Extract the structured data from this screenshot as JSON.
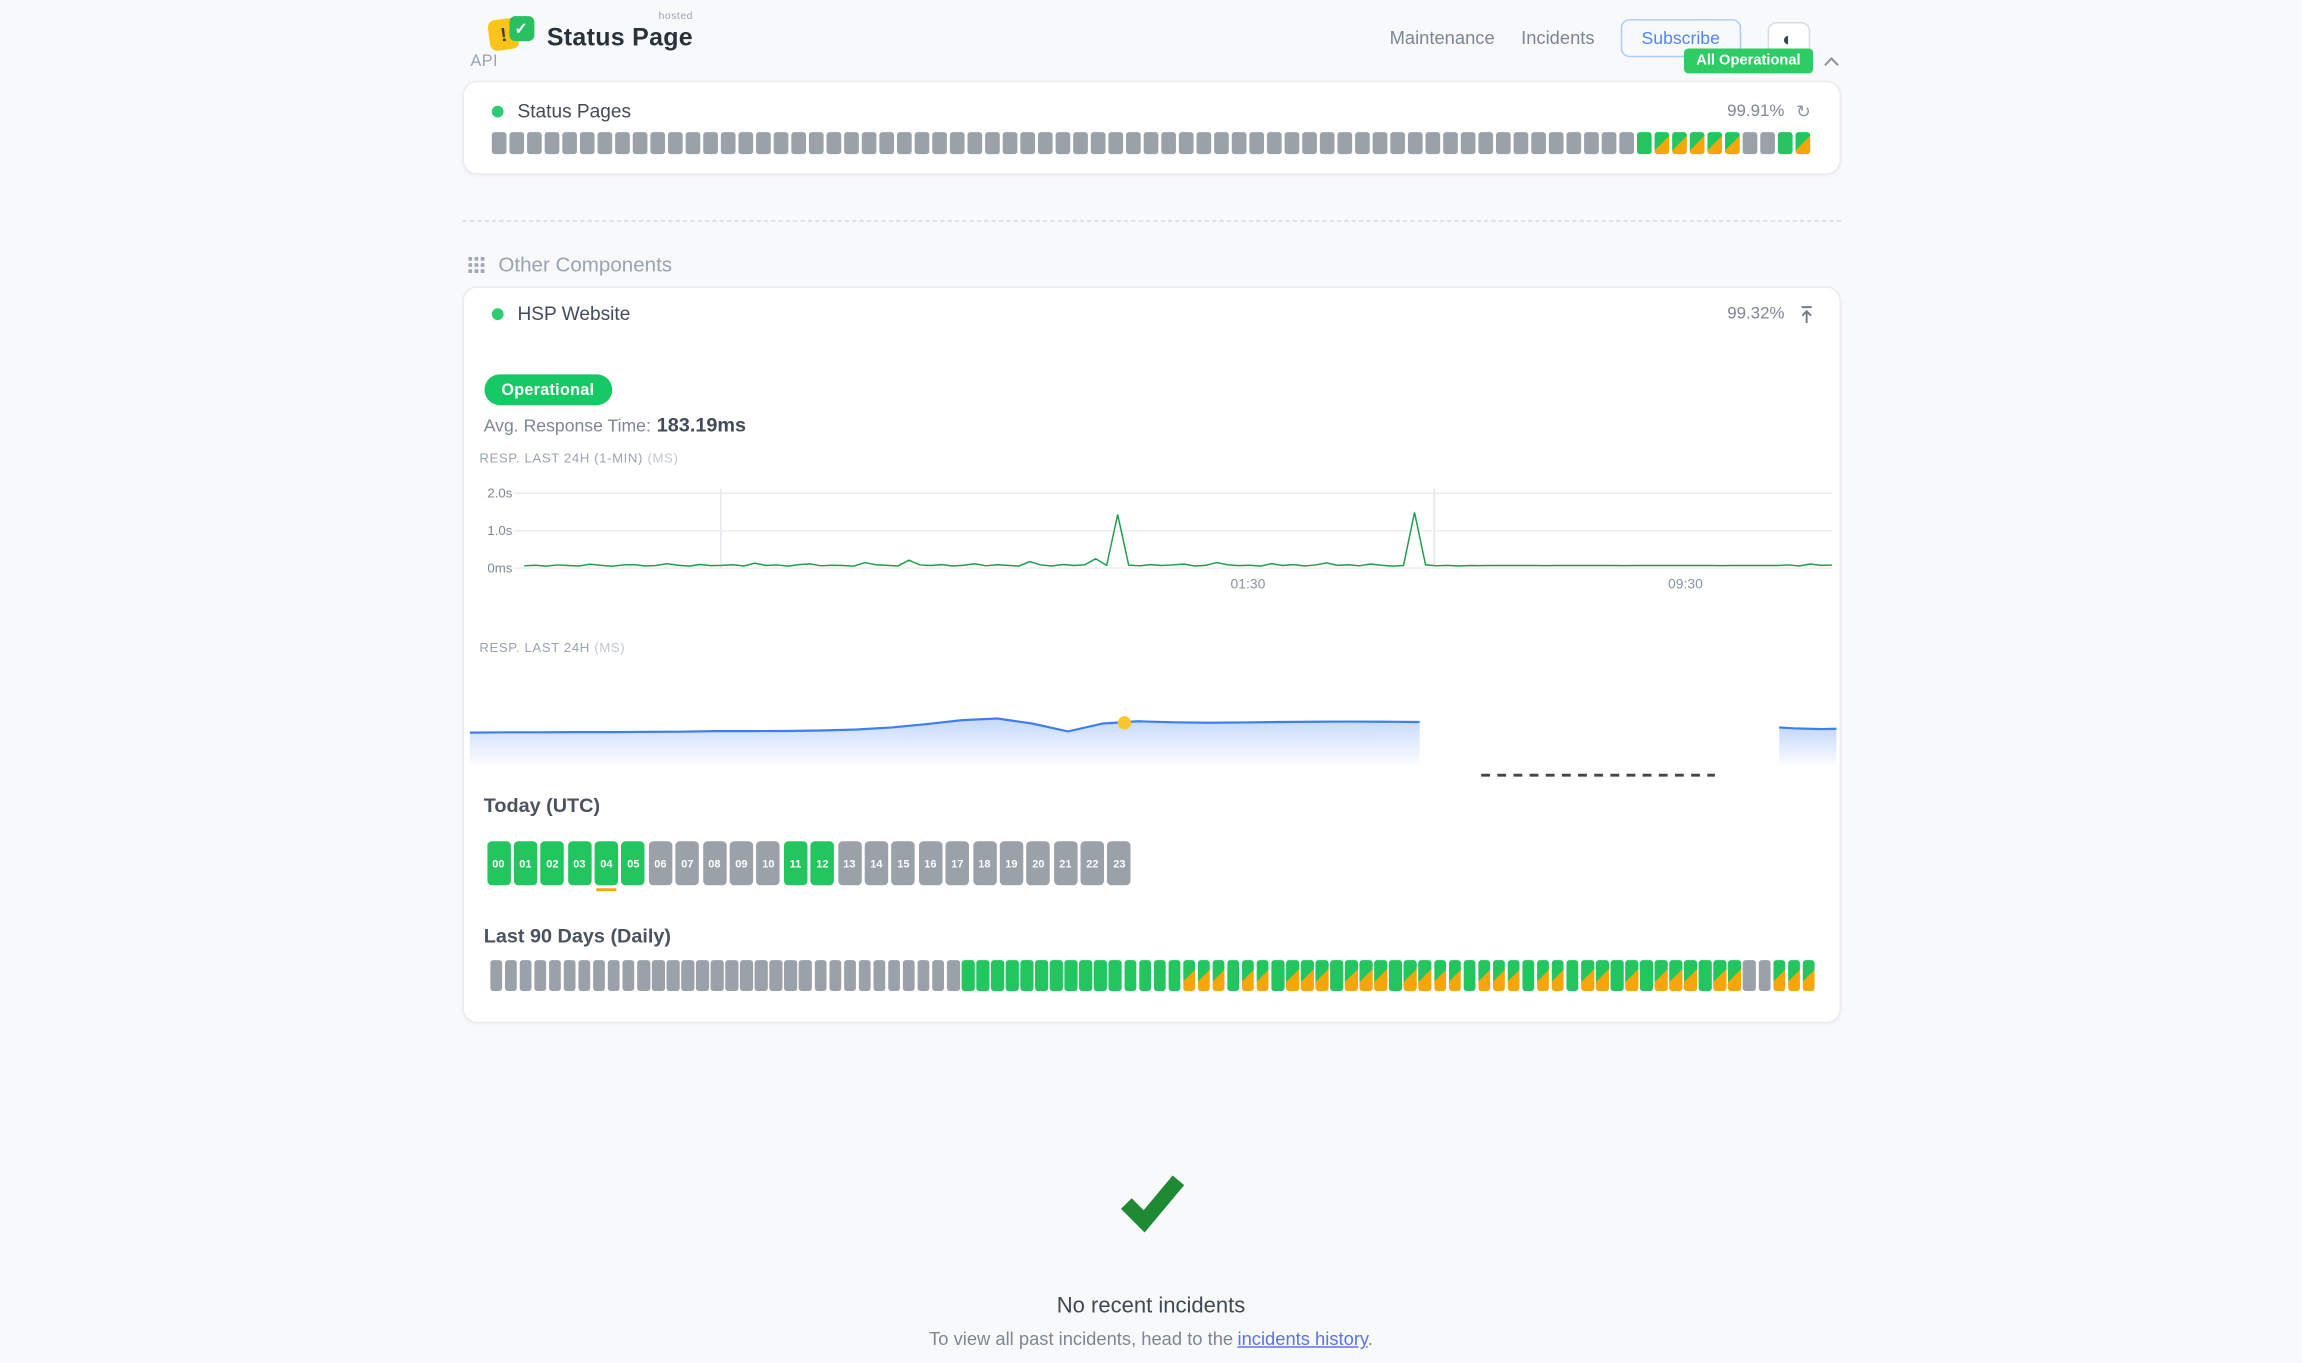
{
  "colors": {
    "green": "#22c55e",
    "pill_green": "#17c964",
    "orange": "#f6a609",
    "gray_bar": "#9aa1a9",
    "chart_line_green": "#1d9e4b",
    "navigator_blue": "#3d7ff0",
    "marker_yellow": "#fbc531",
    "check_green": "#1e8a34",
    "badge_green": "#2fcc66"
  },
  "header": {
    "brand_hosted": "hosted",
    "brand_name": "Status Page",
    "nav": [
      {
        "label": "Maintenance"
      },
      {
        "label": "Incidents"
      }
    ],
    "subscribe_label": "Subscribe",
    "status_badge": "All Operational"
  },
  "api_section": {
    "title": "API",
    "component": {
      "name": "Status Pages",
      "uptime": "99.91%",
      "bars": [
        "none",
        "none",
        "none",
        "none",
        "none",
        "none",
        "none",
        "none",
        "none",
        "none",
        "none",
        "none",
        "none",
        "none",
        "none",
        "none",
        "none",
        "none",
        "none",
        "none",
        "none",
        "none",
        "none",
        "none",
        "none",
        "none",
        "none",
        "none",
        "none",
        "none",
        "none",
        "none",
        "none",
        "none",
        "none",
        "none",
        "none",
        "none",
        "none",
        "none",
        "none",
        "none",
        "none",
        "none",
        "none",
        "none",
        "none",
        "none",
        "none",
        "none",
        "none",
        "none",
        "none",
        "none",
        "none",
        "none",
        "none",
        "none",
        "none",
        "none",
        "none",
        "none",
        "none",
        "none",
        "none",
        "up",
        "partial",
        "partial",
        "partial",
        "partial",
        "partial",
        "none",
        "none",
        "up",
        "partial"
      ]
    }
  },
  "other_section": {
    "title": "Other Components",
    "component": {
      "name": "HSP Website",
      "uptime": "99.32%",
      "status": "Operational",
      "avg_response_label": "Avg. Response Time:",
      "avg_response_value": "183.19ms",
      "today_title": "Today (UTC)",
      "hours": [
        {
          "label": "00",
          "status": "up"
        },
        {
          "label": "01",
          "status": "up"
        },
        {
          "label": "02",
          "status": "up"
        },
        {
          "label": "03",
          "status": "up"
        },
        {
          "label": "04",
          "status": "up",
          "marker": true
        },
        {
          "label": "05",
          "status": "up"
        },
        {
          "label": "06",
          "status": "none"
        },
        {
          "label": "07",
          "status": "none"
        },
        {
          "label": "08",
          "status": "none"
        },
        {
          "label": "09",
          "status": "none"
        },
        {
          "label": "10",
          "status": "none"
        },
        {
          "label": "11",
          "status": "up"
        },
        {
          "label": "12",
          "status": "up"
        },
        {
          "label": "13",
          "status": "none"
        },
        {
          "label": "14",
          "status": "none"
        },
        {
          "label": "15",
          "status": "none"
        },
        {
          "label": "16",
          "status": "none"
        },
        {
          "label": "17",
          "status": "none"
        },
        {
          "label": "18",
          "status": "none"
        },
        {
          "label": "19",
          "status": "none"
        },
        {
          "label": "20",
          "status": "none"
        },
        {
          "label": "21",
          "status": "none"
        },
        {
          "label": "22",
          "status": "none"
        },
        {
          "label": "23",
          "status": "none"
        }
      ],
      "last90_title": "Last 90 Days (Daily)",
      "daily_bars": [
        "none",
        "none",
        "none",
        "none",
        "none",
        "none",
        "none",
        "none",
        "none",
        "none",
        "none",
        "none",
        "none",
        "none",
        "none",
        "none",
        "none",
        "none",
        "none",
        "none",
        "none",
        "none",
        "none",
        "none",
        "none",
        "none",
        "none",
        "none",
        "none",
        "none",
        "none",
        "none",
        "up",
        "up",
        "up",
        "up",
        "up",
        "up",
        "up",
        "up",
        "up",
        "up",
        "up",
        "up",
        "up",
        "up",
        "up",
        "partial",
        "partial",
        "partial",
        "up",
        "partial",
        "partial",
        "up",
        "partial",
        "partial",
        "partial",
        "up",
        "partial",
        "partial",
        "partial",
        "up",
        "partial",
        "partial",
        "partial",
        "partial",
        "up",
        "partial",
        "partial",
        "partial",
        "up",
        "partial",
        "partial",
        "up",
        "partial",
        "partial",
        "up",
        "partial",
        "up",
        "partial",
        "partial",
        "partial",
        "up",
        "partial",
        "partial",
        "none",
        "none",
        "partial",
        "partial",
        "partial"
      ]
    }
  },
  "chart_data": [
    {
      "type": "line",
      "title": "RESP. LAST 24H (1-MIN)",
      "unit": "(MS)",
      "ylim": [
        0,
        2000
      ],
      "ylabel_ticks": [
        {
          "label": "2.0s",
          "value": 2000
        },
        {
          "label": "1.0s",
          "value": 1000
        },
        {
          "label": "0ms",
          "value": 0
        }
      ],
      "x_ticks": [
        {
          "label": "01:30",
          "pos": 0.5655
        },
        {
          "label": "09:30",
          "pos": 0.8908
        }
      ],
      "v_gridlines": [
        0.1736,
        0.704
      ],
      "values_ms": [
        62,
        78,
        55,
        88,
        70,
        60,
        105,
        74,
        52,
        85,
        95,
        60,
        72,
        118,
        80,
        56,
        98,
        66,
        75,
        90,
        58,
        135,
        70,
        85,
        55,
        95,
        112,
        64,
        80,
        70,
        55,
        150,
        90,
        74,
        60,
        210,
        85,
        70,
        95,
        60,
        80,
        118,
        64,
        90,
        75,
        55,
        175,
        85,
        60,
        100,
        70,
        92,
        250,
        76,
        1430,
        82,
        64,
        95,
        70,
        86,
        108,
        60,
        76,
        148,
        90,
        66,
        80,
        55,
        120,
        70,
        95,
        60,
        85,
        140,
        74,
        90,
        64,
        110,
        80,
        56,
        72,
        1490,
        90,
        64,
        76,
        60,
        70,
        68,
        72,
        70,
        69,
        71,
        70,
        68,
        70,
        72,
        69,
        70,
        71,
        70,
        68,
        70,
        69,
        71,
        70,
        70,
        69,
        70,
        71,
        68,
        70,
        69,
        70,
        71,
        70,
        88,
        58,
        108,
        74,
        84
      ]
    },
    {
      "type": "area",
      "title": "RESP. LAST 24H",
      "unit": "(MS)",
      "main_values_ms": [
        150,
        151,
        151,
        152,
        152,
        153,
        154,
        156,
        156,
        157,
        159,
        163,
        172,
        186,
        203,
        210,
        188,
        155,
        189,
        198,
        194,
        192,
        193,
        195,
        196,
        197,
        196,
        195
      ],
      "main_span": [
        0,
        0.695
      ],
      "gap_dash_span": [
        0.74,
        0.911
      ],
      "tail_values_ms": [
        172,
        168,
        166,
        165,
        166
      ],
      "tail_span": [
        0.958,
        1.0
      ],
      "marker": {
        "pos": 0.479,
        "value_ms": 192
      }
    }
  ],
  "footer": {
    "no_incidents_title": "No recent incidents",
    "history_prefix": "To view all past incidents, head to the",
    "history_link": "incidents history",
    "history_suffix": "."
  }
}
